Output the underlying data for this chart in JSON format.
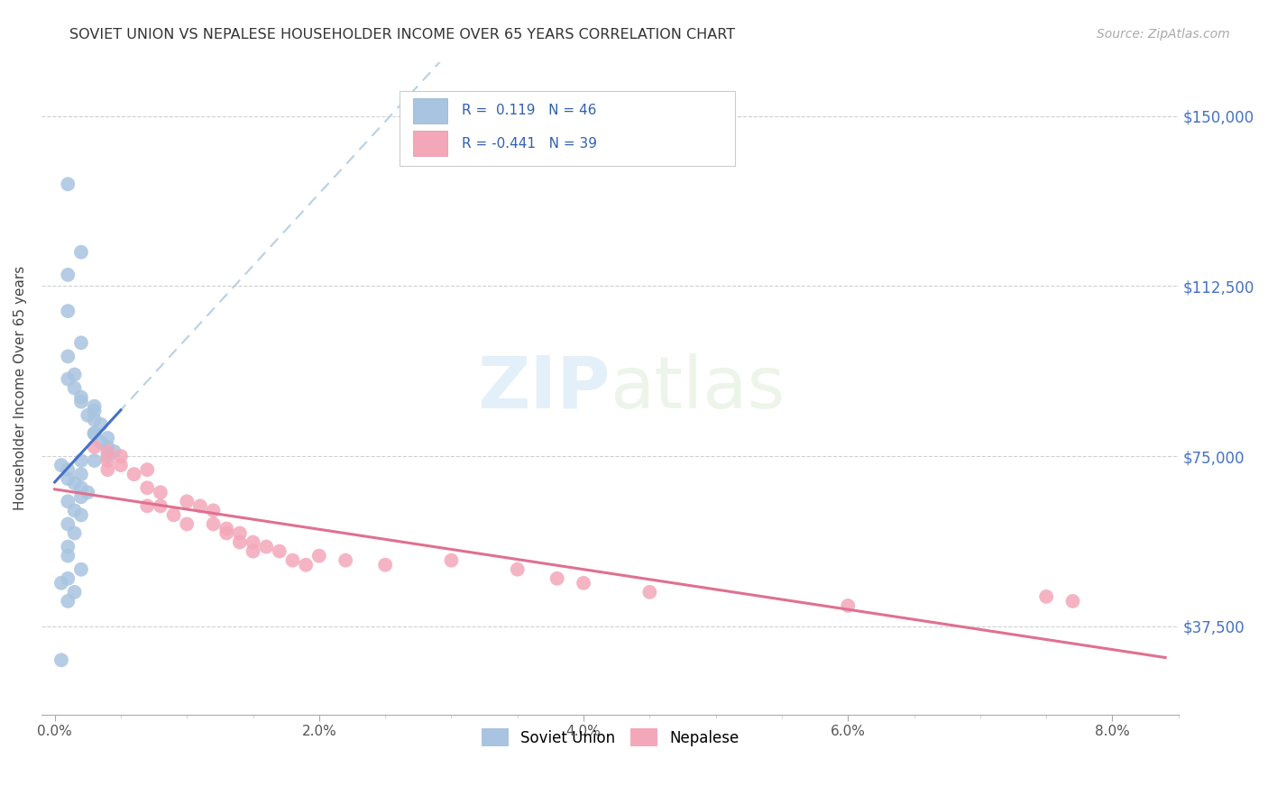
{
  "title": "SOVIET UNION VS NEPALESE HOUSEHOLDER INCOME OVER 65 YEARS CORRELATION CHART",
  "source": "Source: ZipAtlas.com",
  "ylabel": "Householder Income Over 65 years",
  "xlabel_ticks": [
    "0.0%",
    "2.0%",
    "4.0%",
    "6.0%",
    "8.0%"
  ],
  "xlabel_vals": [
    0.0,
    0.02,
    0.04,
    0.06,
    0.08
  ],
  "ylabel_ticks": [
    "$37,500",
    "$75,000",
    "$112,500",
    "$150,000"
  ],
  "ylabel_vals": [
    37500,
    75000,
    112500,
    150000
  ],
  "ylim": [
    18000,
    162000
  ],
  "xlim": [
    -0.001,
    0.085
  ],
  "color_soviet": "#a8c4e0",
  "color_nepalese": "#f4a7b9",
  "trendline_soviet_color": "#4472c4",
  "trendline_nepalese_color": "#e07090",
  "trendline_dashed_color": "#b0cce0",
  "watermark_zip": "ZIP",
  "watermark_atlas": "atlas",
  "soviet_x": [
    0.001,
    0.002,
    0.001,
    0.001,
    0.002,
    0.001,
    0.0015,
    0.001,
    0.0015,
    0.002,
    0.002,
    0.003,
    0.003,
    0.0025,
    0.003,
    0.0035,
    0.003,
    0.003,
    0.004,
    0.0035,
    0.004,
    0.0045,
    0.004,
    0.002,
    0.003,
    0.0005,
    0.001,
    0.002,
    0.001,
    0.0015,
    0.002,
    0.0025,
    0.002,
    0.001,
    0.0015,
    0.002,
    0.001,
    0.0015,
    0.001,
    0.001,
    0.002,
    0.001,
    0.0005,
    0.0015,
    0.001,
    0.0005
  ],
  "soviet_y": [
    135000,
    120000,
    115000,
    107000,
    100000,
    97000,
    93000,
    92000,
    90000,
    88000,
    87000,
    86000,
    85000,
    84000,
    83000,
    82000,
    80000,
    80000,
    79000,
    78000,
    77000,
    76000,
    75000,
    74000,
    74000,
    73000,
    72000,
    71000,
    70000,
    69000,
    68000,
    67000,
    66000,
    65000,
    63000,
    62000,
    60000,
    58000,
    55000,
    53000,
    50000,
    48000,
    47000,
    45000,
    43000,
    30000
  ],
  "nepalese_x": [
    0.003,
    0.004,
    0.004,
    0.004,
    0.005,
    0.005,
    0.006,
    0.007,
    0.007,
    0.007,
    0.008,
    0.008,
    0.009,
    0.01,
    0.01,
    0.011,
    0.012,
    0.012,
    0.013,
    0.013,
    0.014,
    0.014,
    0.015,
    0.015,
    0.016,
    0.017,
    0.018,
    0.019,
    0.02,
    0.022,
    0.025,
    0.03,
    0.035,
    0.038,
    0.04,
    0.045,
    0.06,
    0.075,
    0.077
  ],
  "nepalese_y": [
    77000,
    76000,
    74000,
    72000,
    75000,
    73000,
    71000,
    72000,
    68000,
    64000,
    67000,
    64000,
    62000,
    65000,
    60000,
    64000,
    63000,
    60000,
    59000,
    58000,
    58000,
    56000,
    56000,
    54000,
    55000,
    54000,
    52000,
    51000,
    53000,
    52000,
    51000,
    52000,
    50000,
    48000,
    47000,
    45000,
    42000,
    44000,
    43000
  ]
}
